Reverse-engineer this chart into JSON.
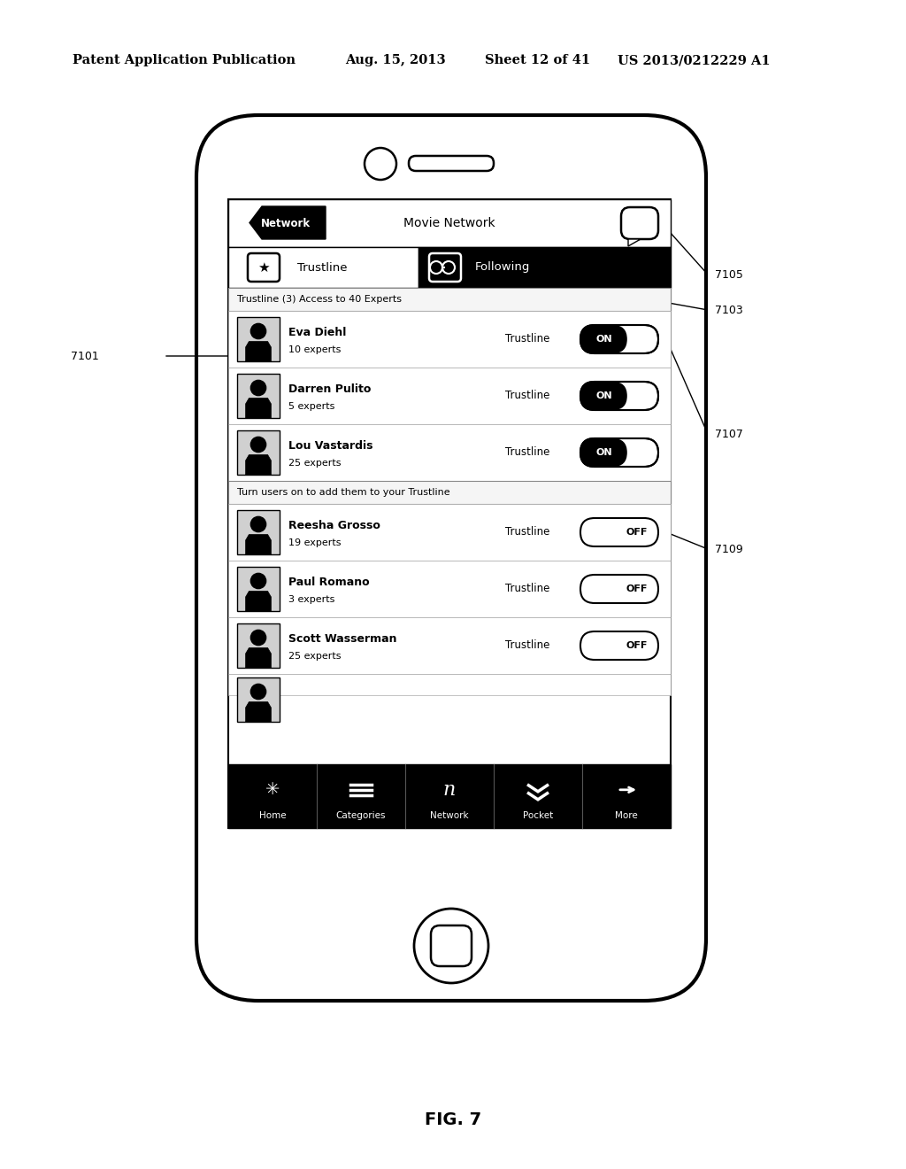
{
  "bg_color": "#ffffff",
  "header_text": "Patent Application Publication",
  "header_date": "Aug. 15, 2013",
  "header_sheet": "Sheet 12 of 41",
  "header_patent": "US 2013/0212229 A1",
  "fig_label": "FIG. 7",
  "nav_bar_label": "Movie Network",
  "tab_left": "Trustline",
  "tab_right": "Following",
  "section1_label": "Trustline (3) Access to 40 Experts",
  "on_users": [
    {
      "name": "Eva Diehl",
      "sub": "10 experts"
    },
    {
      "name": "Darren Pulito",
      "sub": "5 experts"
    },
    {
      "name": "Lou Vastardis",
      "sub": "25 experts"
    }
  ],
  "section2_label": "Turn users on to add them to your Trustline",
  "off_users": [
    {
      "name": "Reesha Grosso",
      "sub": "19 experts"
    },
    {
      "name": "Paul Romano",
      "sub": "3 experts"
    },
    {
      "name": "Scott Wasserman",
      "sub": "25 experts"
    }
  ],
  "bottom_tabs": [
    "Home",
    "Categories",
    "Network",
    "Pocket",
    "More"
  ]
}
